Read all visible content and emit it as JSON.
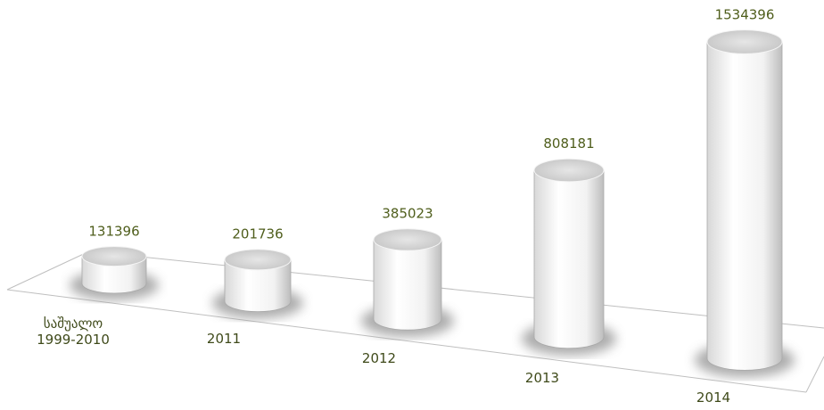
{
  "chart_data": {
    "type": "bar",
    "categories": [
      "საშუალო\n1999-2010",
      "2011",
      "2012",
      "2013",
      "2014"
    ],
    "values": [
      131396,
      201736,
      385023,
      808181,
      1534396
    ],
    "color": "#ffffff"
  }
}
